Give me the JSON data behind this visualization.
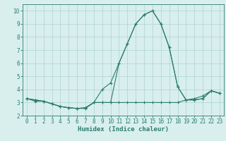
{
  "xlabel": "Humidex (Indice chaleur)",
  "x_values": [
    0,
    1,
    2,
    3,
    4,
    5,
    6,
    7,
    8,
    9,
    10,
    11,
    12,
    13,
    14,
    15,
    16,
    17,
    18,
    19,
    20,
    21,
    22,
    23
  ],
  "line1": [
    3.3,
    3.1,
    3.1,
    2.9,
    2.7,
    2.6,
    2.55,
    2.55,
    3.0,
    3.0,
    3.0,
    6.0,
    7.5,
    9.0,
    9.7,
    10.0,
    9.0,
    7.2,
    4.2,
    3.2,
    3.2,
    3.3,
    3.9,
    3.7
  ],
  "line2": [
    3.3,
    3.2,
    3.1,
    2.9,
    2.7,
    2.6,
    2.55,
    2.6,
    3.0,
    3.0,
    3.0,
    3.0,
    3.0,
    3.0,
    3.0,
    3.0,
    3.0,
    3.0,
    3.0,
    3.2,
    3.3,
    3.5,
    3.9,
    3.7
  ],
  "line3": [
    3.3,
    3.2,
    3.1,
    2.9,
    2.7,
    2.6,
    2.55,
    2.6,
    3.0,
    4.0,
    4.5,
    6.0,
    7.5,
    9.0,
    9.7,
    10.0,
    9.0,
    7.2,
    4.2,
    3.2,
    3.2,
    3.3,
    3.9,
    3.7
  ],
  "line_color": "#2d7d6d",
  "bg_color": "#d8efee",
  "grid_color": "#b2d8d4",
  "ylim": [
    2.0,
    10.5
  ],
  "xlim": [
    -0.5,
    23.5
  ],
  "yticks": [
    2,
    3,
    4,
    5,
    6,
    7,
    8,
    9,
    10
  ],
  "xticks": [
    0,
    1,
    2,
    3,
    4,
    5,
    6,
    7,
    8,
    9,
    10,
    11,
    12,
    13,
    14,
    15,
    16,
    17,
    18,
    19,
    20,
    21,
    22,
    23
  ],
  "tick_fontsize": 5.5,
  "label_fontsize": 6.5
}
